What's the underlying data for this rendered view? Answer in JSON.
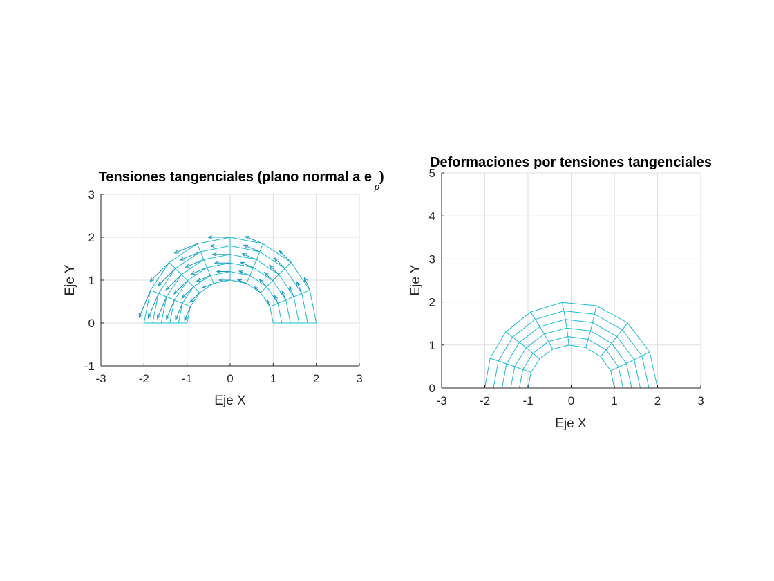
{
  "figure": {
    "background": "#ffffff",
    "mesh_color": "#17becf",
    "arrow_color": "#1f9bc4",
    "grid_color": "#dfdfdf"
  },
  "chart_data": [
    {
      "type": "mesh-quiver",
      "title": "Tensiones tangenciales (plano normal a e",
      "title_subscript": "ρ",
      "title_close": ")",
      "xlabel": "Eje X",
      "ylabel": "Eje Y",
      "xlim": [
        -3,
        3
      ],
      "ylim": [
        -1,
        3
      ],
      "xticks": [
        -3,
        -2,
        -1,
        0,
        1,
        2,
        3
      ],
      "yticks": [
        -1,
        0,
        1,
        2,
        3
      ],
      "xtick_labels": [
        "-3",
        "-2",
        "-1",
        "0",
        "1",
        "2",
        "3"
      ],
      "ytick_labels": [
        "-1",
        "0",
        "1",
        "2",
        "3"
      ],
      "grid": true,
      "mesh": {
        "shape": "half-annulus",
        "r_inner": 1,
        "r_outer": 2,
        "radial_divisions": 5,
        "angular_divisions": 8,
        "theta_range_deg": [
          0,
          180
        ]
      },
      "arrows": {
        "direction": "tangential (counter-clockwise)",
        "magnitude_grows_with": "angle and radius",
        "max_length": 0.75
      }
    },
    {
      "type": "mesh",
      "title": "Deformaciones por tensiones tangenciales",
      "xlabel": "Eje X",
      "ylabel": "Eje Y",
      "xlim": [
        -3,
        3
      ],
      "ylim": [
        0,
        5
      ],
      "xticks": [
        -3,
        -2,
        -1,
        0,
        1,
        2,
        3
      ],
      "yticks": [
        0,
        1,
        2,
        3,
        4,
        5
      ],
      "xtick_labels": [
        "-3",
        "-2",
        "-1",
        "0",
        "1",
        "2",
        "3"
      ],
      "ytick_labels": [
        "0",
        "1",
        "2",
        "3",
        "4",
        "5"
      ],
      "grid": true,
      "mesh": {
        "shape": "deformed half-annulus",
        "r_inner": 1,
        "r_outer": 2,
        "radial_divisions": 5,
        "angular_divisions": 8,
        "theta_range_deg": [
          0,
          180
        ],
        "deformation": "counter-clockwise rotation growing with angle",
        "max_rotation_deg": 6
      }
    }
  ]
}
